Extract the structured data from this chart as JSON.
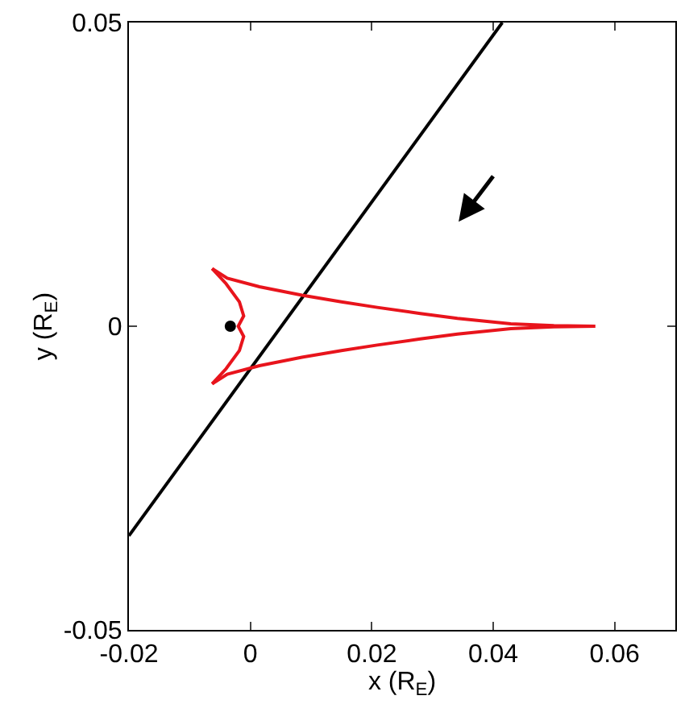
{
  "chart_data": {
    "type": "line",
    "xlabel": "x (R$_{E}$)",
    "ylabel": "y (R$_{E}$)",
    "xlim": [
      -0.02,
      0.07
    ],
    "xticks": [
      -0.02,
      0,
      0.02,
      0.04,
      0.06
    ],
    "ylim": [
      -0.05,
      0.05
    ],
    "yticks": [
      -0.05,
      0,
      0.05
    ],
    "series": [
      {
        "color": "#000000",
        "x": [
          -0.02,
          0.0415
        ],
        "values": [
          -0.0345,
          0.05
        ]
      },
      {
        "color": "#e8141c",
        "x": [
          -0.0063,
          -0.0038,
          0.0015,
          0.0085,
          0.015,
          0.0209,
          0.028,
          0.0341,
          0.0429,
          0.05,
          0.0568
        ],
        "values": [
          0.0095,
          0.0079,
          0.0065,
          0.0051,
          0.004,
          0.0031,
          0.0021,
          0.0013,
          0.0004,
          0.0001,
          0
        ]
      },
      {
        "color": "#e8141c",
        "x": [
          -0.0063,
          -0.004,
          -0.0018,
          -0.0011,
          -0.002,
          -0.0011,
          -0.0018,
          -0.004,
          -0.0063
        ],
        "values": [
          0.0095,
          0.007,
          0.004,
          0.0017,
          0,
          -0.0017,
          -0.004,
          -0.007,
          -0.0095
        ]
      },
      {
        "color": "#e8141c",
        "x": [
          -0.0063,
          -0.0038,
          0.0015,
          0.0085,
          0.015,
          0.0209,
          0.028,
          0.0341,
          0.0429,
          0.05,
          0.0568
        ],
        "values": [
          -0.0095,
          -0.0079,
          -0.0065,
          -0.0051,
          -0.004,
          -0.0031,
          -0.0021,
          -0.0013,
          -0.0004,
          -0.0001,
          0
        ]
      },
      {
        "type": "scatter",
        "color": "#000000",
        "marker": "circle",
        "x": [
          -0.0033
        ],
        "values": [
          0
        ]
      }
    ]
  }
}
